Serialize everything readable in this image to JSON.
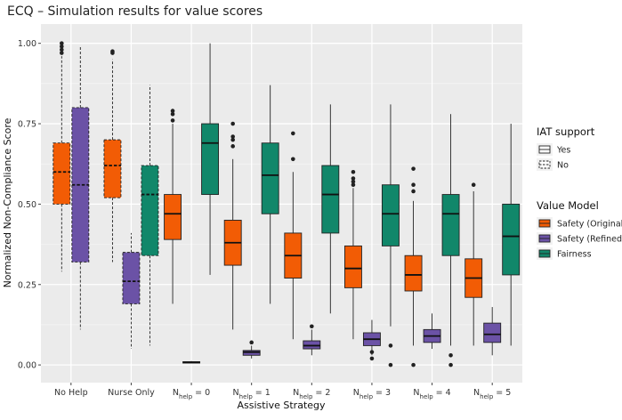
{
  "chart_data": {
    "type": "boxplot",
    "title": "ECQ – Simulation results for value scores",
    "xlabel": "Assistive Strategy",
    "ylabel": "Normalized Non-Compliance Score",
    "ylim": [
      -0.055,
      1.06
    ],
    "yticks": [
      0.0,
      0.25,
      0.5,
      0.75,
      1.0
    ],
    "ytick_labels": [
      "0.00",
      "0.25",
      "0.50",
      "0.75",
      "1.00"
    ],
    "categories": [
      {
        "label": "No Help"
      },
      {
        "label": "Nurse Only"
      },
      {
        "label": "N",
        "sub": "help",
        "suffix": " = 0"
      },
      {
        "label": "N",
        "sub": "help",
        "suffix": " = 1"
      },
      {
        "label": "N",
        "sub": "help",
        "suffix": " = 2"
      },
      {
        "label": "N",
        "sub": "help",
        "suffix": " = 3"
      },
      {
        "label": "N",
        "sub": "help",
        "suffix": " = 4"
      },
      {
        "label": "N",
        "sub": "help",
        "suffix": " = 5"
      }
    ],
    "series": [
      {
        "name": "Safety (Original)",
        "color": "#F25C05"
      },
      {
        "name": "Safety (Refined)",
        "color": "#6B52A6"
      },
      {
        "name": "Fairness",
        "color": "#11876A"
      }
    ],
    "boxes": [
      {
        "cat": 0,
        "series": 0,
        "iat": "No",
        "min": 0.29,
        "q1": 0.5,
        "median": 0.6,
        "q3": 0.69,
        "max": 0.96,
        "outliers": [
          0.97,
          0.98,
          0.99,
          1.0
        ]
      },
      {
        "cat": 0,
        "series": 1,
        "iat": "No",
        "min": 0.11,
        "q1": 0.32,
        "median": 0.56,
        "q3": 0.8,
        "max": 0.99,
        "outliers": []
      },
      {
        "cat": 1,
        "series": 0,
        "iat": "No",
        "min": 0.32,
        "q1": 0.52,
        "median": 0.62,
        "q3": 0.7,
        "max": 0.95,
        "outliers": [
          0.97,
          0.975
        ]
      },
      {
        "cat": 1,
        "series": 1,
        "iat": "No",
        "min": 0.05,
        "q1": 0.19,
        "median": 0.26,
        "q3": 0.35,
        "max": 0.41,
        "outliers": []
      },
      {
        "cat": 1,
        "series": 2,
        "iat": "No",
        "min": 0.06,
        "q1": 0.34,
        "median": 0.53,
        "q3": 0.62,
        "max": 0.87,
        "outliers": []
      },
      {
        "cat": 2,
        "series": 0,
        "iat": "Yes",
        "min": 0.19,
        "q1": 0.39,
        "median": 0.47,
        "q3": 0.53,
        "max": 0.75,
        "outliers": [
          0.76,
          0.78,
          0.79
        ]
      },
      {
        "cat": 2,
        "series": 1,
        "iat": "Yes",
        "min": 0.005,
        "q1": 0.006,
        "median": 0.008,
        "q3": 0.01,
        "max": 0.012,
        "outliers": []
      },
      {
        "cat": 2,
        "series": 2,
        "iat": "Yes",
        "min": 0.28,
        "q1": 0.53,
        "median": 0.69,
        "q3": 0.75,
        "max": 1.0,
        "outliers": []
      },
      {
        "cat": 3,
        "series": 0,
        "iat": "Yes",
        "min": 0.11,
        "q1": 0.31,
        "median": 0.38,
        "q3": 0.45,
        "max": 0.64,
        "outliers": [
          0.68,
          0.7,
          0.71,
          0.75
        ]
      },
      {
        "cat": 3,
        "series": 1,
        "iat": "Yes",
        "min": 0.02,
        "q1": 0.03,
        "median": 0.04,
        "q3": 0.045,
        "max": 0.06,
        "outliers": [
          0.07
        ]
      },
      {
        "cat": 3,
        "series": 2,
        "iat": "Yes",
        "min": 0.19,
        "q1": 0.47,
        "median": 0.59,
        "q3": 0.69,
        "max": 0.87,
        "outliers": []
      },
      {
        "cat": 4,
        "series": 0,
        "iat": "Yes",
        "min": 0.08,
        "q1": 0.27,
        "median": 0.34,
        "q3": 0.41,
        "max": 0.6,
        "outliers": [
          0.64,
          0.72
        ]
      },
      {
        "cat": 4,
        "series": 1,
        "iat": "Yes",
        "min": 0.03,
        "q1": 0.05,
        "median": 0.06,
        "q3": 0.075,
        "max": 0.11,
        "outliers": [
          0.12
        ]
      },
      {
        "cat": 4,
        "series": 2,
        "iat": "Yes",
        "min": 0.16,
        "q1": 0.41,
        "median": 0.53,
        "q3": 0.62,
        "max": 0.81,
        "outliers": []
      },
      {
        "cat": 5,
        "series": 0,
        "iat": "Yes",
        "min": 0.08,
        "q1": 0.24,
        "median": 0.3,
        "q3": 0.37,
        "max": 0.55,
        "outliers": [
          0.56,
          0.57,
          0.58,
          0.6
        ]
      },
      {
        "cat": 5,
        "series": 1,
        "iat": "Yes",
        "min": 0.03,
        "q1": 0.06,
        "median": 0.08,
        "q3": 0.1,
        "max": 0.14,
        "outliers": [
          0.02,
          0.04
        ]
      },
      {
        "cat": 5,
        "series": 2,
        "iat": "Yes",
        "min": 0.12,
        "q1": 0.37,
        "median": 0.47,
        "q3": 0.56,
        "max": 0.81,
        "outliers": [
          0.0,
          0.06
        ]
      },
      {
        "cat": 6,
        "series": 0,
        "iat": "Yes",
        "min": 0.06,
        "q1": 0.23,
        "median": 0.28,
        "q3": 0.34,
        "max": 0.51,
        "outliers": [
          0.0,
          0.54,
          0.56,
          0.61
        ]
      },
      {
        "cat": 6,
        "series": 1,
        "iat": "Yes",
        "min": 0.05,
        "q1": 0.07,
        "median": 0.09,
        "q3": 0.11,
        "max": 0.16,
        "outliers": []
      },
      {
        "cat": 6,
        "series": 2,
        "iat": "Yes",
        "min": 0.06,
        "q1": 0.34,
        "median": 0.47,
        "q3": 0.53,
        "max": 0.78,
        "outliers": [
          0.0,
          0.03
        ]
      },
      {
        "cat": 7,
        "series": 0,
        "iat": "Yes",
        "min": 0.06,
        "q1": 0.21,
        "median": 0.27,
        "q3": 0.33,
        "max": 0.54,
        "outliers": [
          0.56
        ]
      },
      {
        "cat": 7,
        "series": 1,
        "iat": "Yes",
        "min": 0.03,
        "q1": 0.07,
        "median": 0.095,
        "q3": 0.13,
        "max": 0.18,
        "outliers": []
      },
      {
        "cat": 7,
        "series": 2,
        "iat": "Yes",
        "min": 0.06,
        "q1": 0.28,
        "median": 0.4,
        "q3": 0.5,
        "max": 0.75,
        "outliers": []
      }
    ],
    "legends": [
      {
        "title": "IAT support",
        "kind": "linetype",
        "items": [
          {
            "label": "Yes",
            "dashed": false
          },
          {
            "label": "No",
            "dashed": true
          }
        ]
      },
      {
        "title": "Value Model",
        "kind": "fill",
        "items": [
          {
            "label": "Safety (Original)",
            "color": "#F25C05"
          },
          {
            "label": "Safety (Refined)",
            "color": "#6B52A6"
          },
          {
            "label": "Fairness",
            "color": "#11876A"
          }
        ]
      }
    ],
    "panel_background": "#EBEBEB",
    "grid": true
  }
}
